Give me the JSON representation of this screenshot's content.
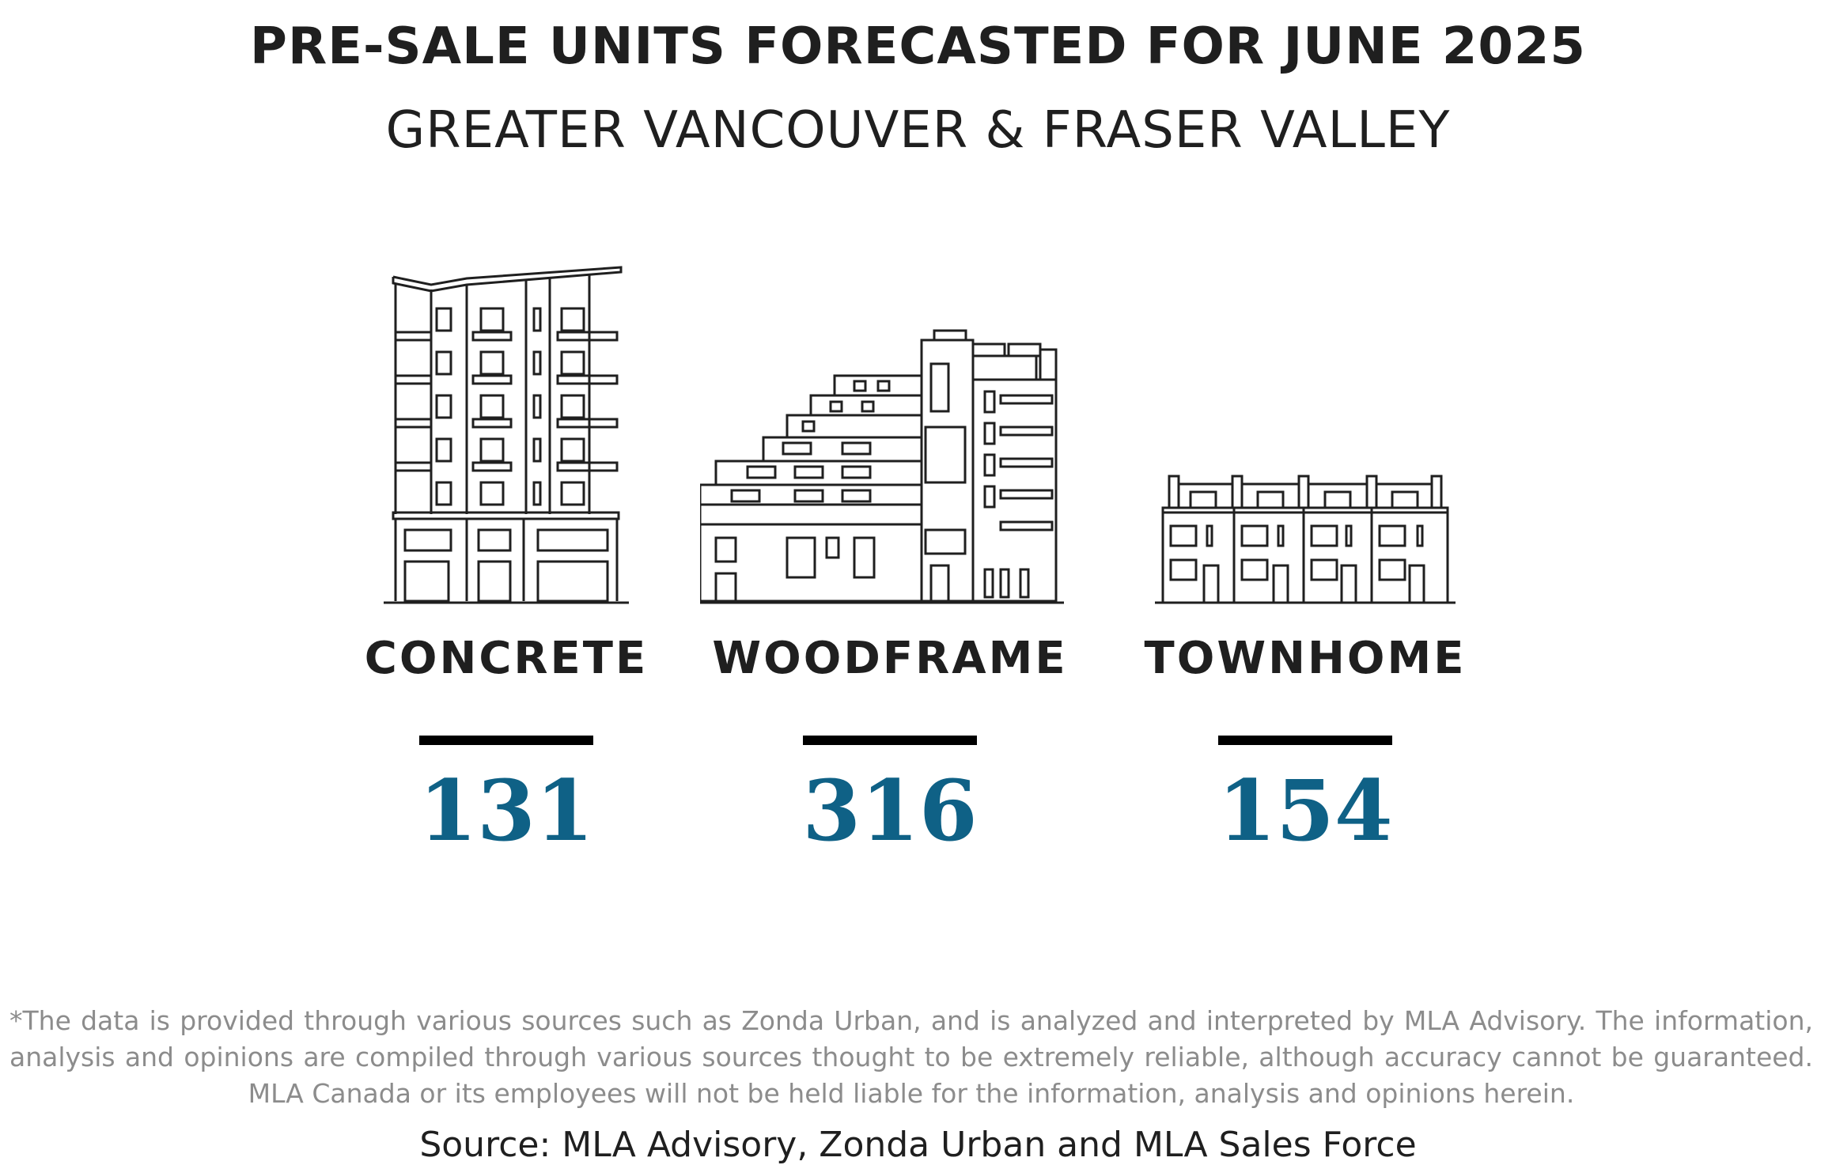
{
  "header": {
    "title": "PRE-SALE UNITS FORECASTED FOR JUNE 2025",
    "subtitle": "GREATER VANCOUVER & FRASER VALLEY"
  },
  "categories": [
    {
      "icon": "concrete-building-icon",
      "label": "CONCRETE",
      "value": "131"
    },
    {
      "icon": "woodframe-building-icon",
      "label": "WOODFRAME",
      "value": "316"
    },
    {
      "icon": "townhome-building-icon",
      "label": "TOWNHOME",
      "value": "154"
    }
  ],
  "colors": {
    "value_color": "#0f6186",
    "text_color": "#1f1f1f",
    "disclaimer_color": "#8c8c8c"
  },
  "footer": {
    "disclaimer": "*The data is provided through various sources such as Zonda Urban, and is analyzed and interpreted by MLA Advisory. The information, analysis and opinions are compiled through various sources thought to be extremely reliable, although accuracy cannot be guaranteed. MLA Canada or its employees will not be held liable for the information, analysis and opinions herein.",
    "source": "Source: MLA Advisory, Zonda Urban and MLA Sales Force"
  }
}
